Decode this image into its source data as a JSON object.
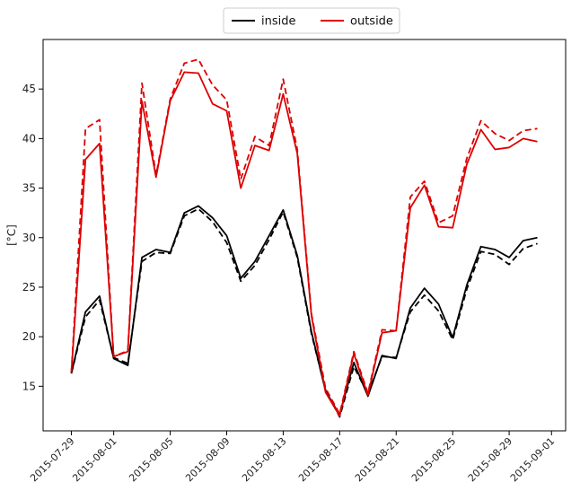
{
  "chart_data": {
    "type": "line",
    "title": "",
    "xlabel": "",
    "ylabel": "[°C]",
    "x_type": "date",
    "xlim": [
      "2015-07-27",
      "2015-09-02"
    ],
    "ylim": [
      10.5,
      50
    ],
    "yticks": [
      15,
      20,
      25,
      30,
      35,
      40,
      45
    ],
    "xticks": [
      "2015-07-29",
      "2015-08-01",
      "2015-08-05",
      "2015-08-09",
      "2015-08-13",
      "2015-08-17",
      "2015-08-21",
      "2015-08-25",
      "2015-08-29",
      "2015-09-01"
    ],
    "grid": false,
    "legend": {
      "position": "top-center",
      "entries": [
        "inside",
        "outside"
      ]
    },
    "x": [
      "2015-07-29",
      "2015-07-30",
      "2015-07-31",
      "2015-08-01",
      "2015-08-02",
      "2015-08-03",
      "2015-08-04",
      "2015-08-05",
      "2015-08-06",
      "2015-08-07",
      "2015-08-08",
      "2015-08-09",
      "2015-08-10",
      "2015-08-11",
      "2015-08-12",
      "2015-08-13",
      "2015-08-14",
      "2015-08-15",
      "2015-08-16",
      "2015-08-17",
      "2015-08-18",
      "2015-08-19",
      "2015-08-20",
      "2015-08-21",
      "2015-08-22",
      "2015-08-23",
      "2015-08-24",
      "2015-08-25",
      "2015-08-26",
      "2015-08-27",
      "2015-08-28",
      "2015-08-29",
      "2015-08-30",
      "2015-08-31"
    ],
    "series": [
      {
        "name": "inside",
        "color": "#000000",
        "dash": "solid",
        "values": [
          16.3,
          22.5,
          24.1,
          17.8,
          17.1,
          28.0,
          28.8,
          28.5,
          32.5,
          33.2,
          32.0,
          30.2,
          25.9,
          27.6,
          30.2,
          32.8,
          28.2,
          20.5,
          14.5,
          12.1,
          17.4,
          14.0,
          18.1,
          17.8,
          22.9,
          24.9,
          23.3,
          19.9,
          25.2,
          29.1,
          28.8,
          28.0,
          29.7,
          30.0
        ]
      },
      {
        "name": "inside",
        "color": "#000000",
        "dash": "dashed",
        "values": [
          16.3,
          22.0,
          23.7,
          17.9,
          17.3,
          27.6,
          28.5,
          28.4,
          32.2,
          32.9,
          31.6,
          29.5,
          25.6,
          27.2,
          29.8,
          32.6,
          28.0,
          20.3,
          14.6,
          11.9,
          17.0,
          14.2,
          18.0,
          17.9,
          22.5,
          24.2,
          22.6,
          19.7,
          24.8,
          28.6,
          28.3,
          27.3,
          28.9,
          29.4
        ]
      },
      {
        "name": "outside",
        "color": "#dd0000",
        "dash": "solid",
        "values": [
          16.4,
          37.9,
          39.5,
          18.0,
          18.5,
          43.8,
          36.1,
          43.8,
          46.7,
          46.6,
          43.5,
          42.8,
          35.0,
          39.3,
          38.8,
          44.5,
          38.5,
          22.1,
          14.4,
          12.0,
          18.3,
          14.1,
          20.4,
          20.6,
          33.0,
          35.3,
          31.1,
          31.0,
          37.4,
          40.9,
          38.9,
          39.1,
          40.0,
          39.7
        ]
      },
      {
        "name": "outside",
        "color": "#dd0000",
        "dash": "dashed",
        "values": [
          16.4,
          41.0,
          41.9,
          18.0,
          18.6,
          45.6,
          36.3,
          44.0,
          47.6,
          48.0,
          45.4,
          43.9,
          35.9,
          40.2,
          39.3,
          46.0,
          38.9,
          22.3,
          14.8,
          12.2,
          18.5,
          14.3,
          20.7,
          20.6,
          34.1,
          35.7,
          31.5,
          32.2,
          38.0,
          41.8,
          40.5,
          39.8,
          40.8,
          41.0
        ]
      }
    ]
  }
}
